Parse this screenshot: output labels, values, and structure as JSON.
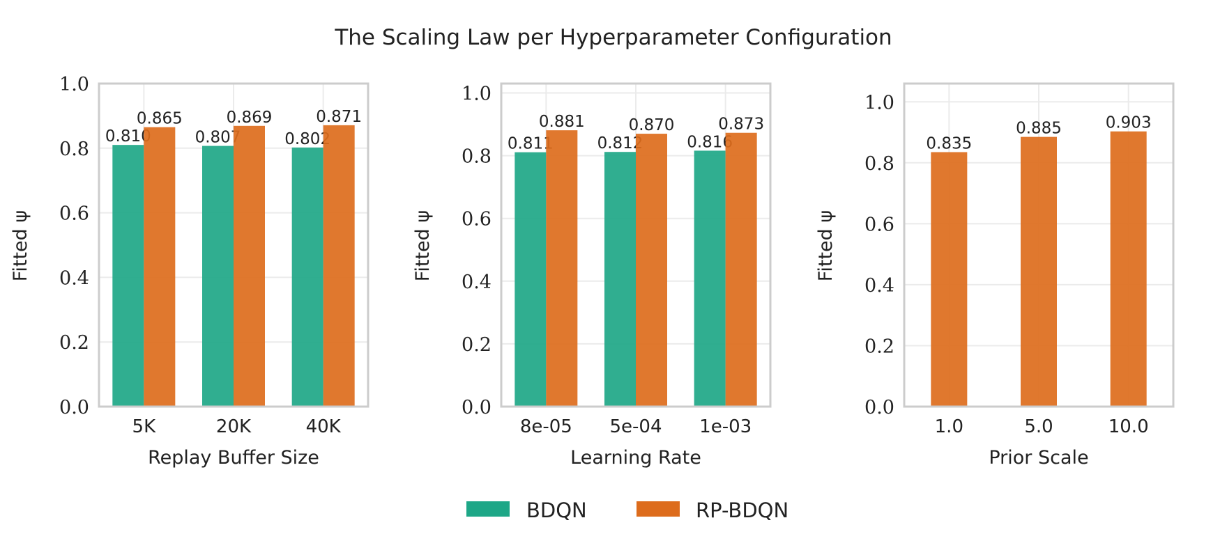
{
  "title": "The Scaling Law per Hyperparameter Configuration",
  "legend": [
    {
      "label": "BDQN",
      "color": "#1ea787"
    },
    {
      "label": "RP-BDQN",
      "color": "#dd6c1c"
    }
  ],
  "legend_position": "bottom-center",
  "chart_data": [
    {
      "type": "bar",
      "xlabel": "Replay Buffer Size",
      "ylabel": "Fitted ψ",
      "categories": [
        "5K",
        "20K",
        "40K"
      ],
      "series": [
        {
          "name": "BDQN",
          "values": [
            0.81,
            0.807,
            0.802
          ],
          "labels": [
            "0.810",
            "0.807",
            "0.802"
          ],
          "color": "#1ea787"
        },
        {
          "name": "RP-BDQN",
          "values": [
            0.865,
            0.869,
            0.871
          ],
          "labels": [
            "0.865",
            "0.869",
            "0.871"
          ],
          "color": "#dd6c1c"
        }
      ],
      "ylim": [
        0,
        1.0
      ],
      "yticks": [
        0.0,
        0.2,
        0.4,
        0.6,
        0.8,
        1.0
      ],
      "ytick_labels": [
        "0.0",
        "0.2",
        "0.4",
        "0.6",
        "0.8",
        "1.0"
      ],
      "grid": true
    },
    {
      "type": "bar",
      "xlabel": "Learning Rate",
      "ylabel": "Fitted ψ",
      "categories": [
        "8e-05",
        "5e-04",
        "1e-03"
      ],
      "series": [
        {
          "name": "BDQN",
          "values": [
            0.811,
            0.812,
            0.816
          ],
          "labels": [
            "0.811",
            "0.812",
            "0.816"
          ],
          "color": "#1ea787"
        },
        {
          "name": "RP-BDQN",
          "values": [
            0.881,
            0.87,
            0.873
          ],
          "labels": [
            "0.881",
            "0.870",
            "0.873"
          ],
          "color": "#dd6c1c"
        }
      ],
      "ylim": [
        0,
        1.03
      ],
      "yticks": [
        0.0,
        0.2,
        0.4,
        0.6,
        0.8,
        1.0
      ],
      "ytick_labels": [
        "0.0",
        "0.2",
        "0.4",
        "0.6",
        "0.8",
        "1.0"
      ],
      "grid": true
    },
    {
      "type": "bar",
      "xlabel": "Prior Scale",
      "ylabel": "Fitted ψ",
      "categories": [
        "1.0",
        "5.0",
        "10.0"
      ],
      "series": [
        {
          "name": "RP-BDQN",
          "values": [
            0.835,
            0.885,
            0.903
          ],
          "labels": [
            "0.835",
            "0.885",
            "0.903"
          ],
          "color": "#dd6c1c"
        }
      ],
      "ylim": [
        0,
        1.06
      ],
      "yticks": [
        0.0,
        0.2,
        0.4,
        0.6,
        0.8,
        1.0
      ],
      "ytick_labels": [
        "0.0",
        "0.2",
        "0.4",
        "0.6",
        "0.8",
        "1.0"
      ],
      "grid": true
    }
  ]
}
